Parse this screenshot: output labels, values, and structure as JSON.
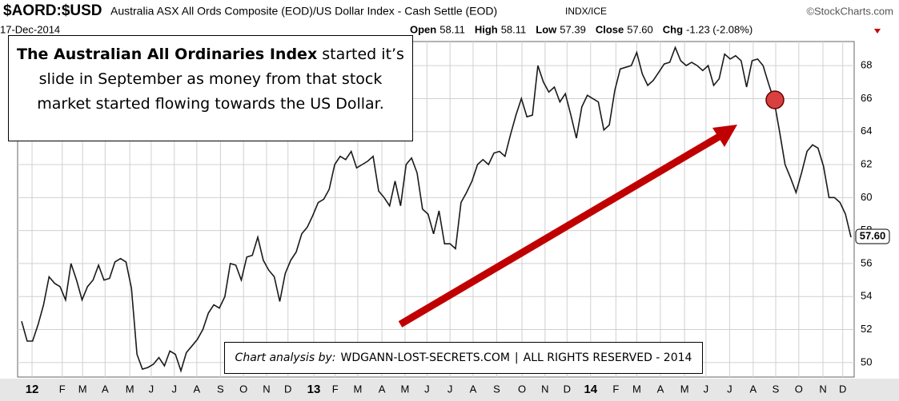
{
  "chart_data": {
    "type": "line",
    "symbol": "$AORD:$USD",
    "title": "Australia ASX All Ords Composite (EOD)/US Dollar Index - Cash Settle (EOD)",
    "exchange": "INDX/ICE",
    "source": "©StockCharts.com",
    "date": "17-Dec-2014",
    "quote": [
      [
        "Open",
        "58.11"
      ],
      [
        "High",
        "58.11"
      ],
      [
        "Low",
        "57.39"
      ],
      [
        "Close",
        "57.60"
      ],
      [
        "Chg",
        "-1.23 (-2.08%)"
      ]
    ],
    "last_label": "57.60",
    "annotation": {
      "bold": "The Australian All Ordinaries Index",
      "text": " started it’s slide in September as money from that stock market started flowing towards the US Dollar."
    },
    "footer": {
      "italic": "Chart analysis by:",
      "text": "WDGANN-LOST-SECRETS.COM",
      "separator": "|",
      "rights": "ALL RIGHTS RESERVED - 2014"
    },
    "color": "#1a1a1a",
    "grid": true,
    "values": [
      52.5,
      51.3,
      51.3,
      52.3,
      53.5,
      55.2,
      54.8,
      54.6,
      53.8,
      56.0,
      55.0,
      53.8,
      54.6,
      55.0,
      55.9,
      55.0,
      55.1,
      56.1,
      56.3,
      56.1,
      54.5,
      50.5,
      49.6,
      49.7,
      49.9,
      50.3,
      49.8,
      50.7,
      50.5,
      49.5,
      50.6,
      51.0,
      51.4,
      52.0,
      53.0,
      53.5,
      53.3,
      54.0,
      56.0,
      55.9,
      55.0,
      56.4,
      56.5,
      57.6,
      56.2,
      55.6,
      55.2,
      53.7,
      55.4,
      56.2,
      56.7,
      57.8,
      58.2,
      58.9,
      59.7,
      59.9,
      60.5,
      62.0,
      62.5,
      62.3,
      62.8,
      61.8,
      62.0,
      62.2,
      62.5,
      60.4,
      60.0,
      59.5,
      61.0,
      59.5,
      62.0,
      62.4,
      61.5,
      59.3,
      59.0,
      57.8,
      59.2,
      57.2,
      57.2,
      56.9,
      59.7,
      60.3,
      61.0,
      62.0,
      62.3,
      62.0,
      62.7,
      62.8,
      62.5,
      63.8,
      65.0,
      66.0,
      64.9,
      65.0,
      68.0,
      67.0,
      66.4,
      66.7,
      65.8,
      66.3,
      65.0,
      63.6,
      65.5,
      66.2,
      66.0,
      65.8,
      64.1,
      64.4,
      66.5,
      67.8,
      67.9,
      68.0,
      68.8,
      67.5,
      66.8,
      67.1,
      67.6,
      68.1,
      68.2,
      69.1,
      68.3,
      68.0,
      68.2,
      68.0,
      67.7,
      68.0,
      66.8,
      67.2,
      68.7,
      68.4,
      68.6,
      68.3,
      66.7,
      68.3,
      68.4,
      68.0,
      66.9,
      65.9,
      64.0,
      62.0,
      61.2,
      60.3,
      61.5,
      62.8,
      63.2,
      63.0,
      61.9,
      60.0,
      60.0,
      59.7,
      59.0,
      57.6
    ],
    "xlim": [
      0,
      151
    ],
    "xticks": [
      {
        "value": 1.9,
        "label": "12"
      },
      {
        "value": 7.4,
        "label": "F"
      },
      {
        "value": 11.1,
        "label": "M"
      },
      {
        "value": 15.2,
        "label": "A"
      },
      {
        "value": 19.7,
        "label": "M"
      },
      {
        "value": 23.6,
        "label": "J"
      },
      {
        "value": 27.8,
        "label": "J"
      },
      {
        "value": 31.9,
        "label": "A"
      },
      {
        "value": 36.2,
        "label": "S"
      },
      {
        "value": 40.4,
        "label": "O"
      },
      {
        "value": 44.6,
        "label": "N"
      },
      {
        "value": 48.5,
        "label": "D"
      },
      {
        "value": 53.2,
        "label": "13"
      },
      {
        "value": 57.1,
        "label": "F"
      },
      {
        "value": 61.2,
        "label": "M"
      },
      {
        "value": 65.6,
        "label": "A"
      },
      {
        "value": 69.8,
        "label": "M"
      },
      {
        "value": 73.8,
        "label": "J"
      },
      {
        "value": 78.0,
        "label": "J"
      },
      {
        "value": 82.2,
        "label": "A"
      },
      {
        "value": 86.5,
        "label": "S"
      },
      {
        "value": 91.1,
        "label": "O"
      },
      {
        "value": 95.3,
        "label": "N"
      },
      {
        "value": 99.3,
        "label": "D"
      },
      {
        "value": 103.6,
        "label": "14"
      },
      {
        "value": 108.2,
        "label": "F"
      },
      {
        "value": 112.0,
        "label": "M"
      },
      {
        "value": 116.3,
        "label": "A"
      },
      {
        "value": 120.7,
        "label": "M"
      },
      {
        "value": 124.6,
        "label": "J"
      },
      {
        "value": 128.9,
        "label": "J"
      },
      {
        "value": 133.2,
        "label": "A"
      },
      {
        "value": 137.3,
        "label": "S"
      },
      {
        "value": 141.5,
        "label": "O"
      },
      {
        "value": 145.9,
        "label": "N"
      },
      {
        "value": 149.5,
        "label": "D"
      }
    ],
    "ylim": [
      49.12,
      69.46
    ],
    "yticks": [
      50,
      52,
      54,
      56,
      58,
      60,
      62,
      64,
      66,
      68
    ]
  }
}
